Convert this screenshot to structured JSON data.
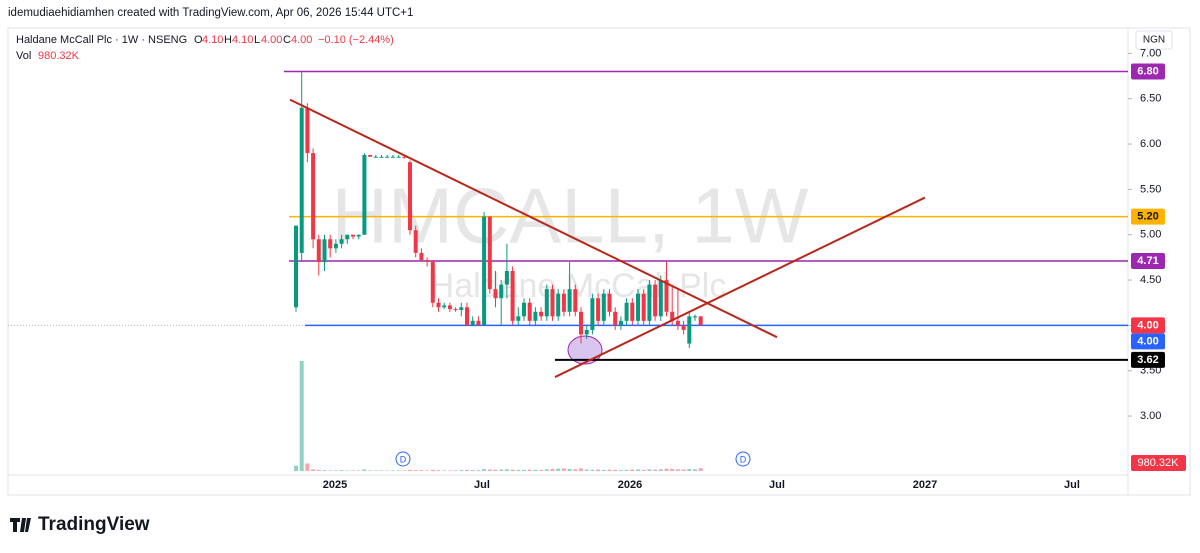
{
  "chart_data": {
    "type": "candlestick",
    "credit": "idemudiaehidiamhen created with TradingView.com, Apr 06, 2026 15:44 UTC+1",
    "legend": {
      "symbol": "Haldane McCall Plc · 1W · NSENG",
      "o_label": "O",
      "o": "4.10",
      "h_label": "H",
      "h": "4.10",
      "l_label": "L",
      "l": "4.00",
      "c_label": "C",
      "c": "4.00",
      "change": "−0.10 (−2.44%)",
      "vol_label": "Vol",
      "vol": "980.32K"
    },
    "currency": "NGN",
    "watermark": "HMCALL, 1W",
    "watermark_name": "Haldane McCall Plc",
    "logo": "TradingView",
    "up_color": "#089981",
    "down_color": "#f23645",
    "ylim": [
      2.35,
      7.28
    ],
    "yticks": [
      {
        "value": 3,
        "label": "3.00"
      },
      {
        "value": 3.5,
        "label": "3.50"
      },
      {
        "value": 4,
        "label": "4.00"
      },
      {
        "value": 4.5,
        "label": "4.50"
      },
      {
        "value": 5,
        "label": "5.00"
      },
      {
        "value": 5.5,
        "label": "5.50"
      },
      {
        "value": 6,
        "label": "6.00"
      },
      {
        "value": 6.5,
        "label": "6.50"
      },
      {
        "value": 7,
        "label": "7.00"
      }
    ],
    "time_labels": [
      "2025",
      "Jul",
      "2026",
      "Jul",
      "2027",
      "Jul"
    ],
    "open": [
      4.2,
      4.8,
      6.4,
      5.9,
      4.95,
      4.7,
      4.95,
      4.85,
      4.9,
      4.95,
      5,
      4.98,
      5,
      5.88,
      5.86,
      5.86,
      5.86,
      5.86,
      5.86,
      5.86,
      5.8,
      5.05,
      4.8,
      4.72,
      4.7,
      4.25,
      4.2,
      4.22,
      4.18,
      4.17,
      4.2,
      4,
      4.05,
      4,
      5.2,
      4.4,
      4.3,
      4.45,
      4.6,
      4.05,
      4.1,
      4.25,
      4.05,
      4.15,
      4.1,
      4.4,
      4.1,
      4.35,
      4.15,
      4.4,
      4.15,
      3.9,
      3.95,
      4.3,
      4.05,
      4.35,
      4.15,
      4,
      4.05,
      4.25,
      4.05,
      4.35,
      4.05,
      4.45,
      4.1,
      4.5,
      4.15,
      4.05,
      4,
      3.8,
      4.1,
      4.1
    ],
    "high": [
      5.1,
      6.8,
      6.45,
      5.95,
      5,
      5,
      5,
      4.95,
      5,
      5,
      5,
      5,
      5.9,
      5.88,
      5.88,
      5.88,
      5.88,
      5.88,
      5.88,
      5.86,
      5.82,
      5.1,
      4.85,
      4.75,
      4.72,
      4.3,
      4.25,
      4.25,
      4.2,
      4.25,
      4.25,
      4.1,
      4.1,
      5.25,
      5.2,
      4.6,
      4.5,
      4.9,
      4.65,
      4.2,
      4.3,
      4.3,
      4.2,
      4.2,
      4.45,
      4.45,
      4.4,
      4.4,
      4.7,
      4.45,
      4.2,
      4,
      4.35,
      4.35,
      4.4,
      4.4,
      4.2,
      4.1,
      4.3,
      4.3,
      4.4,
      4.4,
      4.5,
      4.5,
      4.55,
      4.7,
      4.45,
      4.4,
      4.05,
      4.15,
      4.12,
      4.1
    ],
    "low": [
      4.15,
      4.7,
      5.8,
      4.85,
      4.55,
      4.6,
      4.75,
      4.8,
      4.85,
      4.9,
      4.95,
      4.95,
      5,
      5.86,
      5.85,
      5.85,
      5.85,
      5.85,
      5.85,
      5.84,
      5,
      4.75,
      4.7,
      4.65,
      4.2,
      4.15,
      4.18,
      4.15,
      4.15,
      4.1,
      4,
      4,
      4,
      4,
      4.35,
      4.2,
      4,
      4.3,
      4,
      4,
      4.05,
      4,
      4,
      4.05,
      4.05,
      4.05,
      4.05,
      4.1,
      4.1,
      4.1,
      3.8,
      3.85,
      3.9,
      4,
      4,
      4.1,
      3.95,
      3.95,
      4,
      4,
      4,
      4,
      4,
      4.05,
      4.05,
      4.1,
      4,
      3.95,
      3.9,
      3.75,
      4.05,
      4
    ],
    "close": [
      5.1,
      6.4,
      5.9,
      4.95,
      4.7,
      4.95,
      4.85,
      4.9,
      4.95,
      5,
      4.98,
      5,
      5.88,
      5.86,
      5.86,
      5.86,
      5.86,
      5.86,
      5.86,
      5.85,
      5.05,
      4.8,
      4.72,
      4.7,
      4.25,
      4.2,
      4.22,
      4.18,
      4.17,
      4.2,
      4,
      4.05,
      4,
      5.2,
      4.4,
      4.3,
      4.45,
      4.6,
      4.05,
      4.1,
      4.25,
      4.05,
      4.15,
      4.1,
      4.4,
      4.1,
      4.35,
      4.15,
      4.4,
      4.15,
      3.9,
      3.95,
      4.3,
      4.05,
      4.35,
      4.15,
      4,
      4.05,
      4.25,
      4.05,
      4.35,
      4.05,
      4.45,
      4.1,
      4.5,
      4.15,
      4.05,
      4,
      3.95,
      4.1,
      4.1,
      4
    ],
    "volume": [
      1800000,
      38000000,
      2600000,
      600000,
      400000,
      300000,
      200000,
      200000,
      300000,
      200000,
      200000,
      200000,
      500000,
      200000,
      200000,
      200000,
      200000,
      200000,
      200000,
      200000,
      400000,
      300000,
      300000,
      200000,
      400000,
      300000,
      200000,
      200000,
      200000,
      300000,
      400000,
      300000,
      300000,
      700000,
      500000,
      400000,
      500000,
      600000,
      500000,
      400000,
      400000,
      500000,
      400000,
      400000,
      600000,
      700000,
      800000,
      900000,
      700000,
      600000,
      900000,
      500000,
      400000,
      500000,
      400000,
      500000,
      400000,
      300000,
      400000,
      500000,
      500000,
      400000,
      600000,
      500000,
      600000,
      800000,
      700000,
      600000,
      500000,
      700000,
      600000,
      980320
    ],
    "vol_label": "980.32K",
    "hlines": [
      {
        "value": 6.8,
        "label": "6.80",
        "color": "#9c27b0"
      },
      {
        "value": 5.2,
        "label": "5.20",
        "color": "#ffb300"
      },
      {
        "value": 4.71,
        "label": "4.71",
        "color": "#9c27b0"
      },
      {
        "value": 4,
        "label": "4.00",
        "color": "#2962ff"
      },
      {
        "value": 3.62,
        "label": "3.62",
        "color": "#000000"
      }
    ],
    "last_price": {
      "value": 4,
      "label": "4.00",
      "color": "#f23645"
    },
    "trendlines": [
      {
        "from": 6.49,
        "to": 3.87,
        "color": "#b7281c"
      },
      {
        "from": 3.43,
        "to": 5.41,
        "color": "#b7281c"
      }
    ],
    "dividends": [
      "D",
      "D"
    ]
  }
}
